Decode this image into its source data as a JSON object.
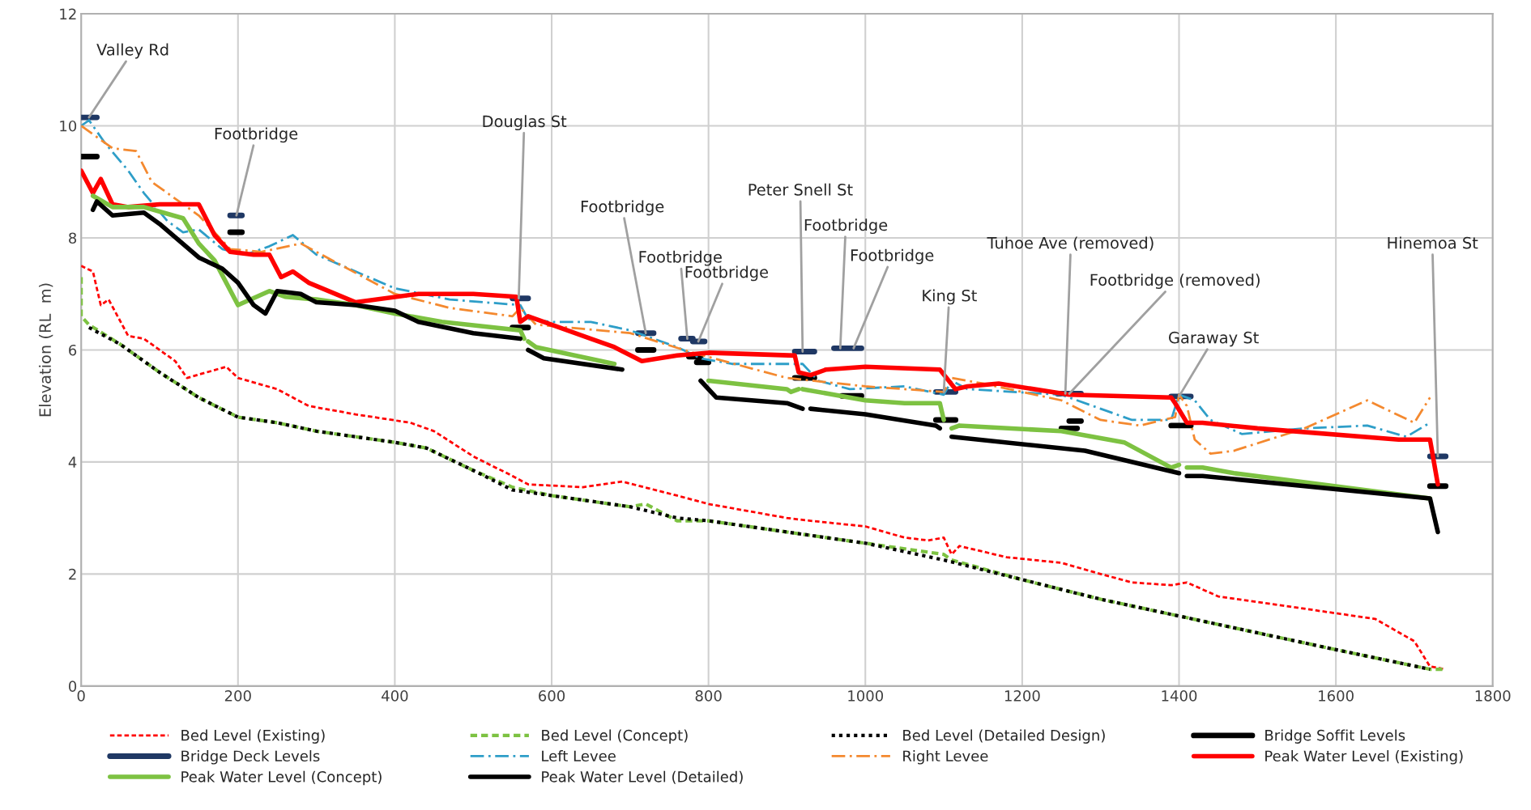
{
  "chart_data": {
    "type": "line",
    "ylabel": "Elevation (RL  m)",
    "xlim": [
      0,
      1800
    ],
    "ylim": [
      0,
      12
    ],
    "xticks": [
      0,
      200,
      400,
      600,
      800,
      1000,
      1200,
      1400,
      1600,
      1800
    ],
    "yticks": [
      0,
      2,
      4,
      6,
      8,
      10,
      12
    ],
    "grid": true,
    "legend": "bottom",
    "series": [
      {
        "name": "Bed Level (Existing)",
        "color": "#ff0000",
        "line_style": "dashed",
        "x": [
          0,
          15,
          25,
          35,
          60,
          80,
          100,
          120,
          135,
          160,
          185,
          200,
          250,
          290,
          350,
          420,
          450,
          500,
          550,
          570,
          640,
          690,
          760,
          800,
          900,
          930,
          1000,
          1050,
          1080,
          1100,
          1110,
          1120,
          1180,
          1250,
          1300,
          1340,
          1390,
          1410,
          1450,
          1500,
          1600,
          1650,
          1700,
          1720,
          1740
        ],
        "values": [
          7.5,
          7.4,
          6.8,
          6.9,
          6.25,
          6.2,
          6.0,
          5.8,
          5.5,
          5.6,
          5.7,
          5.5,
          5.3,
          5.0,
          4.85,
          4.7,
          4.55,
          4.1,
          3.75,
          3.6,
          3.55,
          3.65,
          3.4,
          3.25,
          3.0,
          2.95,
          2.85,
          2.65,
          2.6,
          2.65,
          2.35,
          2.5,
          2.3,
          2.2,
          2.0,
          1.85,
          1.8,
          1.85,
          1.6,
          1.5,
          1.3,
          1.2,
          0.8,
          0.35,
          0.3
        ]
      },
      {
        "name": "Bed Level (Concept)",
        "color": "#7dc242",
        "line_style": "dashed",
        "x": [
          0,
          0,
          10,
          50,
          100,
          150,
          200,
          250,
          300,
          350,
          400,
          440,
          500,
          550,
          600,
          650,
          700,
          720,
          760,
          800,
          900,
          1000,
          1100,
          1110,
          1200,
          1300,
          1400,
          1500,
          1600,
          1720,
          1740
        ],
        "values": [
          7.3,
          6.6,
          6.45,
          6.1,
          5.6,
          5.15,
          4.8,
          4.7,
          4.55,
          4.45,
          4.35,
          4.25,
          3.85,
          3.55,
          3.4,
          3.3,
          3.2,
          3.25,
          2.95,
          2.95,
          2.75,
          2.55,
          2.35,
          2.25,
          1.9,
          1.55,
          1.25,
          0.95,
          0.65,
          0.3,
          0.3
        ]
      },
      {
        "name": "Bed Level (Detailed Design)",
        "color": "#000000",
        "line_style": "dotted",
        "x": [
          10,
          50,
          100,
          150,
          200,
          250,
          300,
          350,
          400,
          440,
          500,
          550,
          600,
          650,
          700,
          760,
          800,
          900,
          1000,
          1100,
          1200,
          1300,
          1400,
          1500,
          1600,
          1720
        ],
        "values": [
          6.4,
          6.1,
          5.6,
          5.15,
          4.8,
          4.7,
          4.55,
          4.45,
          4.35,
          4.25,
          3.85,
          3.5,
          3.4,
          3.3,
          3.2,
          3.0,
          2.95,
          2.75,
          2.55,
          2.25,
          1.9,
          1.55,
          1.25,
          0.95,
          0.65,
          0.3
        ]
      },
      {
        "name": "Bridge Soffit Levels",
        "color": "#000000",
        "line_style": "solid",
        "x": [
          0,
          20,
          null,
          190,
          205,
          null,
          550,
          570,
          null,
          710,
          730,
          null,
          775,
          790,
          null,
          785,
          800,
          null,
          910,
          935,
          null,
          970,
          995,
          null,
          1090,
          1115,
          null,
          1250,
          1270,
          null,
          1260,
          1275,
          null,
          1390,
          1415,
          null,
          1720,
          1740
        ],
        "values": [
          9.45,
          9.45,
          null,
          8.1,
          8.1,
          null,
          6.4,
          6.4,
          null,
          6.0,
          6.0,
          null,
          5.88,
          5.88,
          null,
          5.78,
          5.78,
          null,
          5.5,
          5.5,
          null,
          5.18,
          5.18,
          null,
          4.75,
          4.75,
          null,
          4.6,
          4.6,
          null,
          4.73,
          4.73,
          null,
          4.65,
          4.65,
          null,
          3.57,
          3.57
        ]
      },
      {
        "name": "Bridge Deck Levels",
        "color": "#1f3864",
        "line_style": "solid",
        "x": [
          0,
          20,
          null,
          190,
          205,
          null,
          550,
          570,
          null,
          710,
          730,
          null,
          765,
          780,
          null,
          780,
          795,
          null,
          910,
          935,
          null,
          960,
          995,
          null,
          1090,
          1115,
          null,
          1245,
          1275,
          null,
          1390,
          1415,
          null,
          1720,
          1740
        ],
        "values": [
          10.15,
          10.15,
          null,
          8.4,
          8.4,
          null,
          6.92,
          6.92,
          null,
          6.3,
          6.3,
          null,
          6.2,
          6.2,
          null,
          6.15,
          6.15,
          null,
          5.97,
          5.97,
          null,
          6.03,
          6.03,
          null,
          5.25,
          5.25,
          null,
          5.22,
          5.22,
          null,
          5.17,
          5.17,
          null,
          4.1,
          4.1
        ]
      },
      {
        "name": "Left Levee",
        "color": "#2e9ec8",
        "line_style": "dashdot",
        "x": [
          0,
          10,
          30,
          60,
          80,
          110,
          130,
          150,
          180,
          210,
          240,
          270,
          300,
          400,
          470,
          560,
          570,
          600,
          650,
          700,
          760,
          790,
          830,
          900,
          920,
          940,
          980,
          1050,
          1100,
          1110,
          1130,
          1250,
          1300,
          1340,
          1390,
          1400,
          1420,
          1440,
          1480,
          1560,
          1640,
          1690,
          1720
        ],
        "values": [
          10.0,
          10.1,
          9.7,
          9.2,
          8.8,
          8.3,
          8.1,
          8.15,
          7.8,
          7.7,
          7.85,
          8.05,
          7.7,
          7.1,
          6.9,
          6.8,
          6.55,
          6.5,
          6.5,
          6.35,
          6.05,
          5.85,
          5.75,
          5.75,
          5.75,
          5.45,
          5.3,
          5.35,
          5.2,
          5.45,
          5.3,
          5.2,
          4.95,
          4.75,
          4.75,
          5.2,
          5.1,
          4.75,
          4.5,
          4.6,
          4.65,
          4.45,
          4.7
        ]
      },
      {
        "name": "Right Levee",
        "color": "#f4892f",
        "line_style": "dashdot",
        "x": [
          0,
          20,
          40,
          70,
          90,
          130,
          150,
          190,
          230,
          280,
          300,
          400,
          470,
          550,
          560,
          580,
          700,
          780,
          900,
          1000,
          1100,
          1110,
          1150,
          1250,
          1300,
          1350,
          1395,
          1400,
          1410,
          1420,
          1440,
          1470,
          1560,
          1640,
          1700,
          1720
        ],
        "values": [
          10.0,
          9.8,
          9.6,
          9.55,
          9.0,
          8.6,
          8.4,
          7.8,
          7.75,
          7.9,
          7.75,
          7.0,
          6.75,
          6.6,
          6.75,
          6.45,
          6.3,
          5.95,
          5.5,
          5.35,
          5.25,
          5.5,
          5.4,
          5.1,
          4.75,
          4.65,
          4.8,
          5.2,
          5.0,
          4.4,
          4.15,
          4.2,
          4.6,
          5.1,
          4.7,
          5.15
        ]
      },
      {
        "name": "Peak Water Level (Existing)",
        "color": "#ff0000",
        "line_style": "solid",
        "x": [
          0,
          15,
          25,
          40,
          60,
          100,
          150,
          170,
          190,
          220,
          240,
          255,
          270,
          290,
          350,
          430,
          500,
          555,
          560,
          570,
          650,
          680,
          715,
          760,
          800,
          910,
          915,
          930,
          950,
          1000,
          1095,
          1115,
          1130,
          1170,
          1260,
          1390,
          1395,
          1410,
          1430,
          1500,
          1680,
          1720,
          1730
        ],
        "values": [
          9.2,
          8.8,
          9.05,
          8.6,
          8.55,
          8.6,
          8.6,
          8.05,
          7.75,
          7.7,
          7.7,
          7.3,
          7.4,
          7.2,
          6.85,
          7.0,
          7.0,
          6.95,
          6.5,
          6.6,
          6.2,
          6.05,
          5.8,
          5.9,
          5.95,
          5.9,
          5.6,
          5.55,
          5.65,
          5.7,
          5.65,
          5.3,
          5.35,
          5.4,
          5.2,
          5.15,
          5.05,
          4.7,
          4.7,
          4.6,
          4.4,
          4.4,
          3.6
        ]
      },
      {
        "name": "Peak Water Level (Concept)",
        "color": "#7dc242",
        "line_style": "solid",
        "x": [
          15,
          40,
          80,
          130,
          150,
          170,
          200,
          240,
          260,
          300,
          350,
          400,
          460,
          560,
          565,
          null,
          570,
          580,
          680,
          null,
          800,
          900,
          905,
          915,
          null,
          920,
          1000,
          1050,
          1095,
          1100,
          null,
          1110,
          1120,
          1250,
          1330,
          1390,
          1400,
          null,
          1410,
          1430,
          1470,
          1720
        ],
        "values": [
          8.75,
          8.55,
          8.55,
          8.35,
          7.9,
          7.6,
          6.8,
          7.05,
          6.95,
          6.9,
          6.8,
          6.65,
          6.5,
          6.35,
          6.2,
          null,
          6.15,
          6.05,
          5.75,
          null,
          5.45,
          5.3,
          5.25,
          5.3,
          null,
          5.3,
          5.1,
          5.05,
          5.05,
          4.75,
          null,
          4.6,
          4.65,
          4.55,
          4.35,
          3.9,
          3.95,
          null,
          3.9,
          3.9,
          3.8,
          3.35
        ]
      },
      {
        "name": "Peak Water Level (Detailed)",
        "color": "#000000",
        "line_style": "solid",
        "x": [
          15,
          20,
          40,
          80,
          100,
          150,
          180,
          200,
          220,
          235,
          250,
          280,
          300,
          350,
          400,
          430,
          500,
          560,
          null,
          570,
          590,
          690,
          null,
          790,
          810,
          900,
          920,
          null,
          930,
          1000,
          1090,
          1095,
          null,
          1110,
          1280,
          1400,
          null,
          1410,
          1430,
          1720,
          1730
        ],
        "values": [
          8.5,
          8.65,
          8.4,
          8.45,
          8.25,
          7.65,
          7.45,
          7.2,
          6.8,
          6.65,
          7.05,
          7.0,
          6.85,
          6.8,
          6.7,
          6.5,
          6.3,
          6.2,
          null,
          6.0,
          5.85,
          5.65,
          null,
          5.45,
          5.15,
          5.05,
          4.95,
          null,
          4.95,
          4.85,
          4.65,
          4.6,
          null,
          4.45,
          4.2,
          3.8,
          null,
          3.75,
          3.75,
          3.35,
          2.75
        ]
      }
    ],
    "annotations": [
      {
        "text": "Valley Rd",
        "x": 10,
        "y": 10.15
      },
      {
        "text": "Footbridge",
        "x": 198,
        "y": 8.4
      },
      {
        "text": "Douglas St",
        "x": 558,
        "y": 6.92
      },
      {
        "text": "Footbridge",
        "x": 720,
        "y": 6.3
      },
      {
        "text": "Footbridge",
        "x": 773,
        "y": 6.2
      },
      {
        "text": "Footbridge",
        "x": 787,
        "y": 6.15
      },
      {
        "text": "Peter Snell St",
        "x": 920,
        "y": 5.97
      },
      {
        "text": "Footbridge",
        "x": 968,
        "y": 6.03
      },
      {
        "text": "Footbridge",
        "x": 985,
        "y": 6.03
      },
      {
        "text": "King St",
        "x": 1100,
        "y": 5.25
      },
      {
        "text": "Tuhoe Ave (removed)",
        "x": 1255,
        "y": 5.22
      },
      {
        "text": "Footbridge (removed)",
        "x": 1260,
        "y": 5.22
      },
      {
        "text": "Garaway St",
        "x": 1400,
        "y": 5.17
      },
      {
        "text": "Hinemoa St",
        "x": 1730,
        "y": 4.1
      }
    ]
  }
}
